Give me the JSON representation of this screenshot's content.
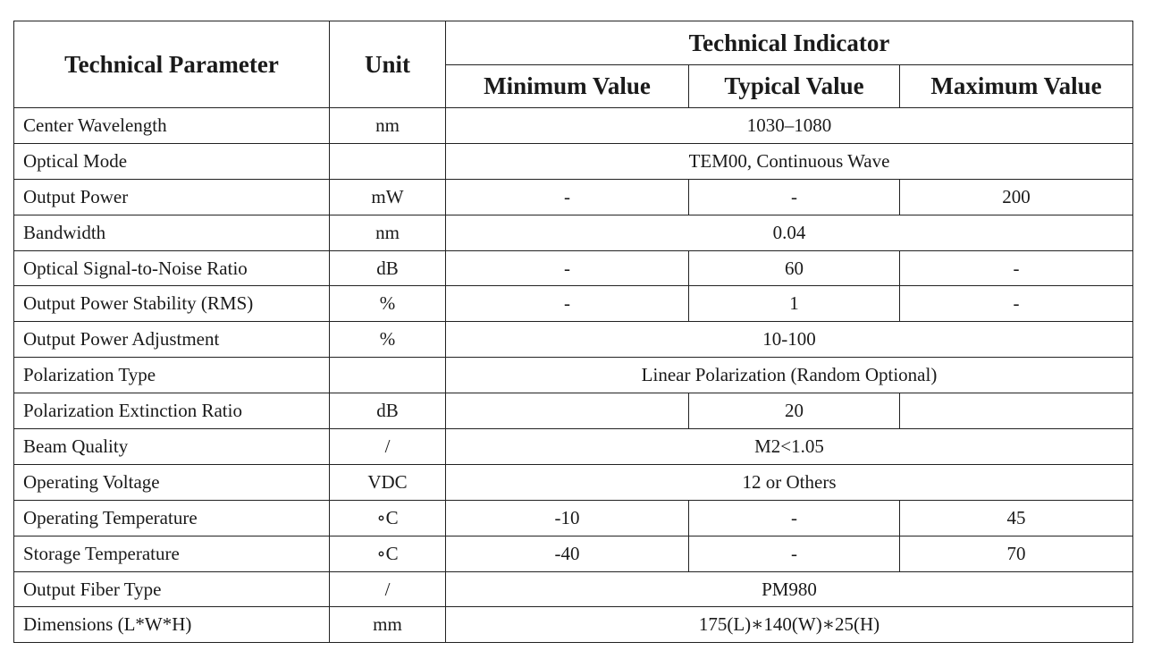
{
  "table": {
    "header": {
      "parameter": "Technical Parameter",
      "unit": "Unit",
      "indicator": "Technical Indicator",
      "min": "Minimum Value",
      "typical": "Typical Value",
      "max": "Maximum Value"
    },
    "rows": [
      {
        "parameter": "Center Wavelength",
        "unit": "nm",
        "value": "1030–1080"
      },
      {
        "parameter": "Optical Mode",
        "value": "TEM00, Continuous Wave"
      },
      {
        "parameter": "Output Power",
        "unit": "mW",
        "min": "-",
        "typical": "-",
        "max": "200"
      },
      {
        "parameter": "Bandwidth",
        "unit": "nm",
        "value": "0.04"
      },
      {
        "parameter": "Optical Signal-to-Noise Ratio",
        "unit": "dB",
        "min": "-",
        "typical": "60",
        "max": "-"
      },
      {
        "parameter": "Output Power Stability (RMS)",
        "unit": "%",
        "min": "-",
        "typical": "1",
        "max": "-"
      },
      {
        "parameter": "Output Power Adjustment",
        "unit": "%",
        "value": "10-100"
      },
      {
        "parameter": "Polarization Type",
        "value": "Linear Polarization (Random Optional)"
      },
      {
        "parameter": "Polarization Extinction Ratio",
        "unit": "dB",
        "typical": "20"
      },
      {
        "parameter": "Beam Quality",
        "unit": "/",
        "value": "M2<1.05"
      },
      {
        "parameter": "Operating Voltage",
        "unit": "VDC",
        "value": "12 or Others"
      },
      {
        "parameter": "Operating Temperature",
        "unit": "∘C",
        "min": "-10",
        "typical": "-",
        "max": "45"
      },
      {
        "parameter": "Storage Temperature",
        "unit": "∘C",
        "min": "-40",
        "typical": "-",
        "max": "70"
      },
      {
        "parameter": "Output Fiber Type",
        "unit": "/",
        "value": "PM980"
      },
      {
        "parameter": "Dimensions (L*W*H)",
        "unit": "mm",
        "value": "175(L)∗140(W)∗25(H)"
      }
    ]
  }
}
